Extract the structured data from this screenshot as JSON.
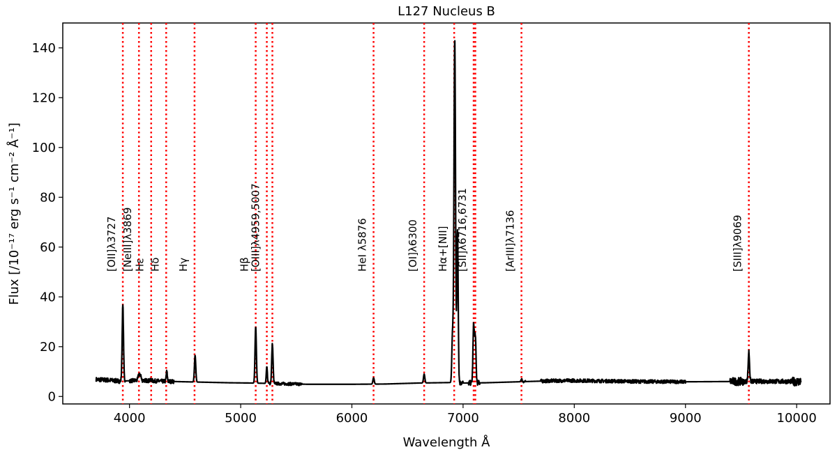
{
  "chart_data": {
    "type": "line",
    "title": "L127 Nucleus B",
    "xlabel": "Wavelength Å",
    "ylabel": "Flux  [/10⁻¹⁷ erg s⁻¹ cm⁻² Å⁻¹]",
    "xlim": [
      3400,
      10300
    ],
    "ylim": [
      -3,
      150
    ],
    "xticks": [
      4000,
      5000,
      6000,
      7000,
      8000,
      9000,
      10000
    ],
    "yticks": [
      0,
      20,
      40,
      60,
      80,
      100,
      120,
      140
    ],
    "grid": false,
    "colors": {
      "spectrum": "#000000",
      "line_markers": "#ff0000"
    },
    "emission_lines": [
      {
        "label": "[OII]λ3727",
        "x": [
          3940
        ]
      },
      {
        "label": "[NeIII]λ3869",
        "x": [
          4085
        ]
      },
      {
        "label": "Hε",
        "x": [
          4195
        ]
      },
      {
        "label": "Hδ",
        "x": [
          4330
        ]
      },
      {
        "label": "Hγ",
        "x": [
          4585
        ]
      },
      {
        "label": "Hβ",
        "x": [
          5135
        ]
      },
      {
        "label": "[OIII]λ4959,5007",
        "x": [
          5235,
          5285
        ]
      },
      {
        "label": "HeI λ5876",
        "x": [
          6195
        ]
      },
      {
        "label": "[OI]λ6300",
        "x": [
          6650
        ]
      },
      {
        "label": "Hα+[NII]",
        "x": [
          6920
        ]
      },
      {
        "label": "[SII]λ6716,6731",
        "x": [
          7095,
          7110
        ]
      },
      {
        "label": "[ArIII]λ7136",
        "x": [
          7525
        ]
      },
      {
        "label": "[SIII]λ9069",
        "x": [
          9570
        ]
      }
    ],
    "series": [
      {
        "continuum": [
          [
            3700,
            6.8
          ],
          [
            3800,
            6.6
          ],
          [
            3900,
            6.2
          ],
          [
            4000,
            6.3
          ],
          [
            4100,
            6.5
          ],
          [
            4300,
            6.1
          ],
          [
            4500,
            5.9
          ],
          [
            4700,
            5.7
          ],
          [
            4900,
            5.5
          ],
          [
            5100,
            5.4
          ],
          [
            5400,
            5.1
          ],
          [
            5600,
            4.9
          ],
          [
            6000,
            4.9
          ],
          [
            6300,
            5.0
          ],
          [
            6600,
            5.4
          ],
          [
            6900,
            5.6
          ],
          [
            7000,
            5.4
          ],
          [
            7200,
            5.5
          ],
          [
            7500,
            5.9
          ],
          [
            7800,
            6.3
          ],
          [
            8000,
            6.4
          ],
          [
            8300,
            6.2
          ],
          [
            8600,
            6.0
          ],
          [
            9000,
            5.9
          ],
          [
            9400,
            6.0
          ],
          [
            9700,
            6.1
          ],
          [
            10000,
            6.0
          ],
          [
            10040,
            6.0
          ]
        ],
        "peaks": [
          [
            3940,
            36.5,
            12
          ],
          [
            4085,
            9,
            14
          ],
          [
            4100,
            8.5,
            10
          ],
          [
            4195,
            6.8,
            10
          ],
          [
            4335,
            10,
            10
          ],
          [
            4590,
            16.5,
            12
          ],
          [
            5135,
            28,
            12
          ],
          [
            5235,
            12,
            10
          ],
          [
            5285,
            21,
            12
          ],
          [
            6195,
            7.5,
            12
          ],
          [
            6650,
            9,
            12
          ],
          [
            6905,
            25,
            12
          ],
          [
            6925,
            144,
            14
          ],
          [
            6950,
            67,
            12
          ],
          [
            7095,
            28.5,
            12
          ],
          [
            7110,
            24,
            12
          ],
          [
            7525,
            7,
            10
          ],
          [
            9570,
            18,
            12
          ]
        ],
        "noisy_ranges": [
          [
            3700,
            3960,
            0.9
          ],
          [
            4000,
            4400,
            0.8
          ],
          [
            5240,
            5550,
            0.6
          ],
          [
            6900,
            7000,
            1.0
          ],
          [
            7050,
            7150,
            1.0
          ],
          [
            7520,
            7560,
            0.5
          ],
          [
            7700,
            9000,
            0.7
          ],
          [
            9400,
            9520,
            1.6
          ],
          [
            9520,
            9960,
            0.9
          ],
          [
            9960,
            10040,
            1.7
          ]
        ]
      }
    ]
  }
}
